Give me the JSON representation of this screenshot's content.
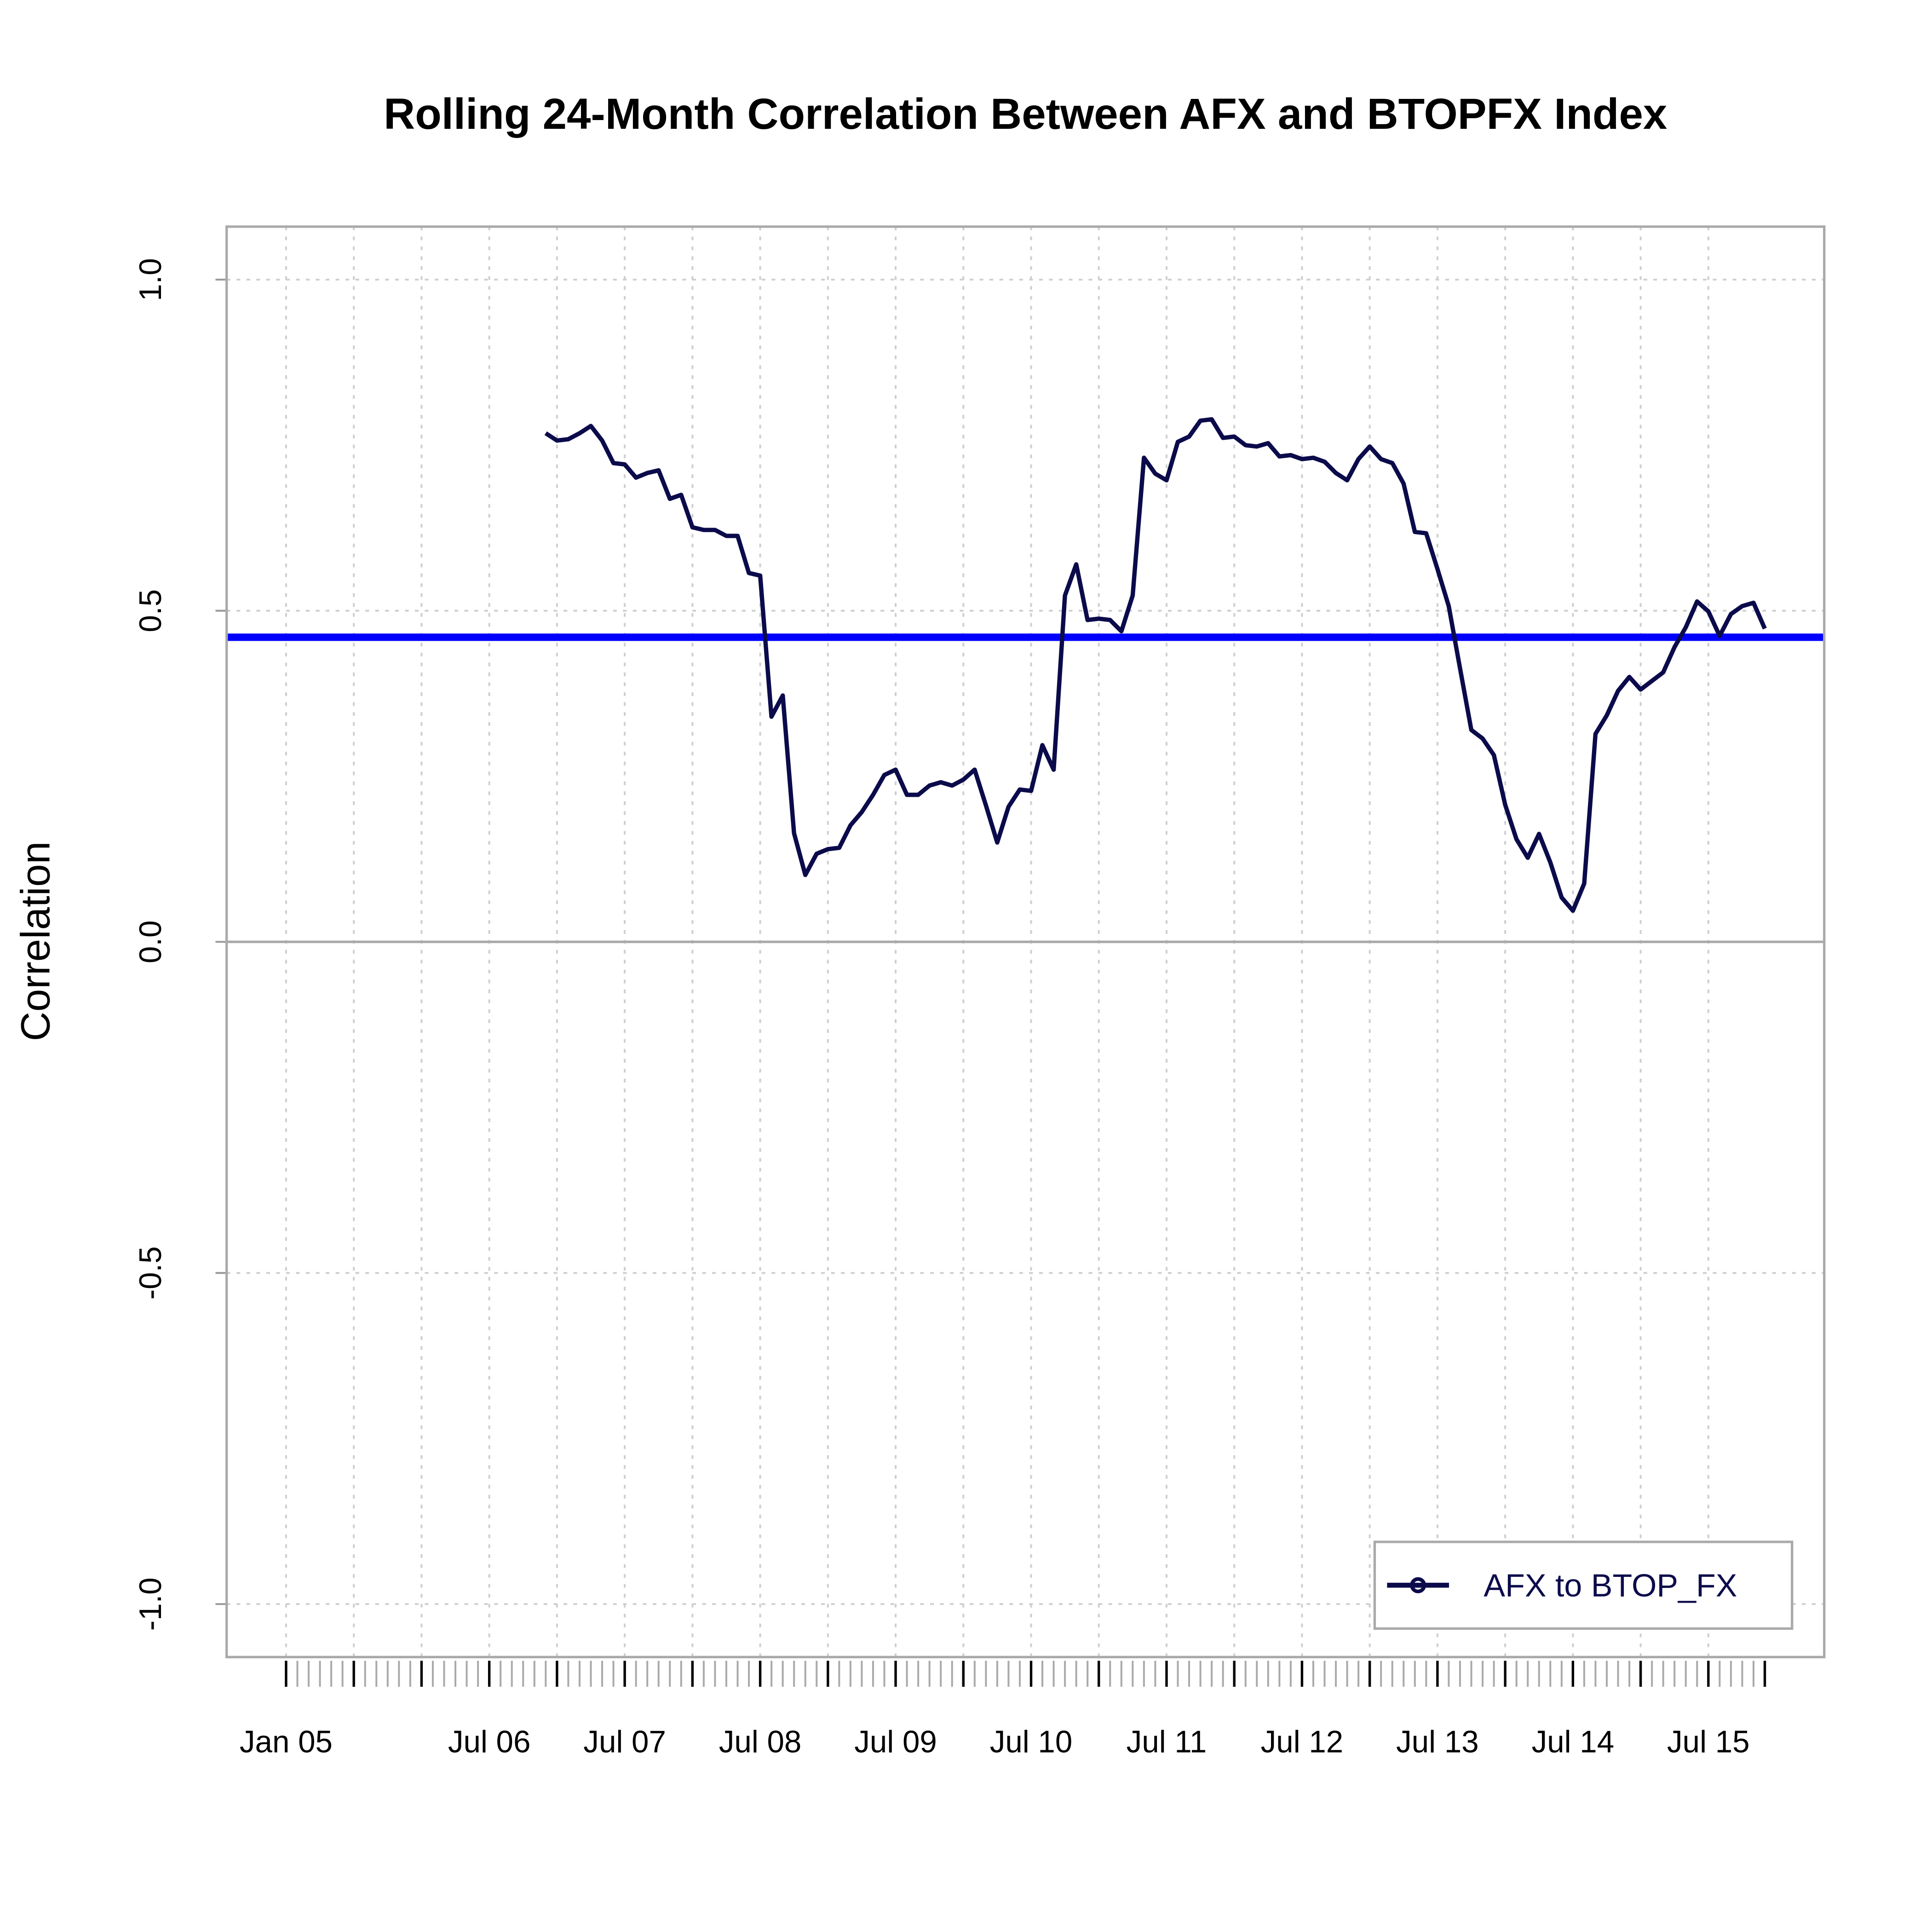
{
  "chart_data": {
    "type": "line",
    "title": "Rolling 24-Month Correlation Between AFX and BTOPFX Index",
    "y_label": "Correlation",
    "x": [
      "Jan 05",
      null,
      null,
      null,
      null,
      null,
      null,
      null,
      null,
      null,
      null,
      null,
      null,
      null,
      null,
      null,
      null,
      null,
      "Jul 06",
      null,
      null,
      null,
      null,
      null,
      null,
      null,
      null,
      null,
      null,
      null,
      "Jul 07",
      null,
      null,
      null,
      null,
      null,
      null,
      null,
      null,
      null,
      null,
      null,
      "Jul 08",
      null,
      null,
      null,
      null,
      null,
      null,
      null,
      null,
      null,
      null,
      null,
      "Jul 09",
      null,
      null,
      null,
      null,
      null,
      null,
      null,
      null,
      null,
      null,
      null,
      "Jul 10",
      null,
      null,
      null,
      null,
      null,
      null,
      null,
      null,
      null,
      null,
      null,
      "Jul 11",
      null,
      null,
      null,
      null,
      null,
      null,
      null,
      null,
      null,
      null,
      null,
      "Jul 12",
      null,
      null,
      null,
      null,
      null,
      null,
      null,
      null,
      null,
      null,
      null,
      "Jul 13",
      null,
      null,
      null,
      null,
      null,
      null,
      null,
      null,
      null,
      null,
      null,
      "Jul 14",
      null,
      null,
      null,
      null,
      null,
      null,
      null,
      null,
      null,
      null,
      null,
      "Jul 15",
      null,
      null,
      null,
      null,
      null
    ],
    "series": [
      {
        "name": "AFX to BTOP_FX",
        "color": "#0b0b4b",
        "values": [
          null,
          null,
          null,
          null,
          null,
          null,
          null,
          null,
          null,
          null,
          null,
          null,
          null,
          null,
          null,
          null,
          null,
          null,
          null,
          null,
          null,
          null,
          null,
          0.768,
          0.757,
          0.759,
          0.768,
          0.779,
          0.757,
          0.723,
          0.721,
          0.701,
          0.708,
          0.712,
          0.669,
          0.675,
          0.626,
          0.622,
          0.622,
          0.613,
          0.613,
          0.557,
          0.553,
          0.34,
          0.372,
          0.164,
          0.101,
          0.133,
          0.14,
          0.142,
          0.176,
          0.196,
          0.222,
          0.252,
          0.26,
          0.222,
          0.222,
          0.236,
          0.241,
          0.236,
          0.245,
          0.26,
          0.206,
          0.15,
          0.204,
          0.23,
          0.228,
          0.297,
          0.26,
          0.523,
          0.57,
          0.486,
          0.488,
          0.486,
          0.469,
          0.523,
          0.731,
          0.707,
          0.697,
          0.755,
          0.763,
          0.787,
          0.789,
          0.761,
          0.763,
          0.75,
          0.748,
          0.753,
          0.733,
          0.735,
          0.729,
          0.731,
          0.725,
          0.708,
          0.697,
          0.729,
          0.748,
          0.729,
          0.723,
          0.692,
          0.619,
          0.617,
          0.563,
          0.507,
          0.413,
          0.32,
          0.307,
          0.282,
          0.207,
          0.155,
          0.127,
          0.163,
          0.12,
          0.067,
          0.047,
          0.088,
          0.314,
          0.342,
          0.379,
          0.4,
          0.381,
          0.394,
          0.407,
          0.445,
          0.475,
          0.514,
          0.499,
          0.462,
          0.495,
          0.507,
          0.512,
          0.473
        ]
      }
    ],
    "hline": {
      "value": 0.46,
      "color": "#0000ff"
    },
    "ylim": [
      -1.08,
      1.08
    ],
    "yticks": [
      {
        "value": -1,
        "label": "-1.0"
      },
      -0.5,
      {
        "value": 0,
        "label": "0.0"
      },
      0.5,
      {
        "value": 1,
        "label": "1.0"
      }
    ],
    "zero_line": true,
    "grid": true,
    "legend": "bottomright"
  }
}
